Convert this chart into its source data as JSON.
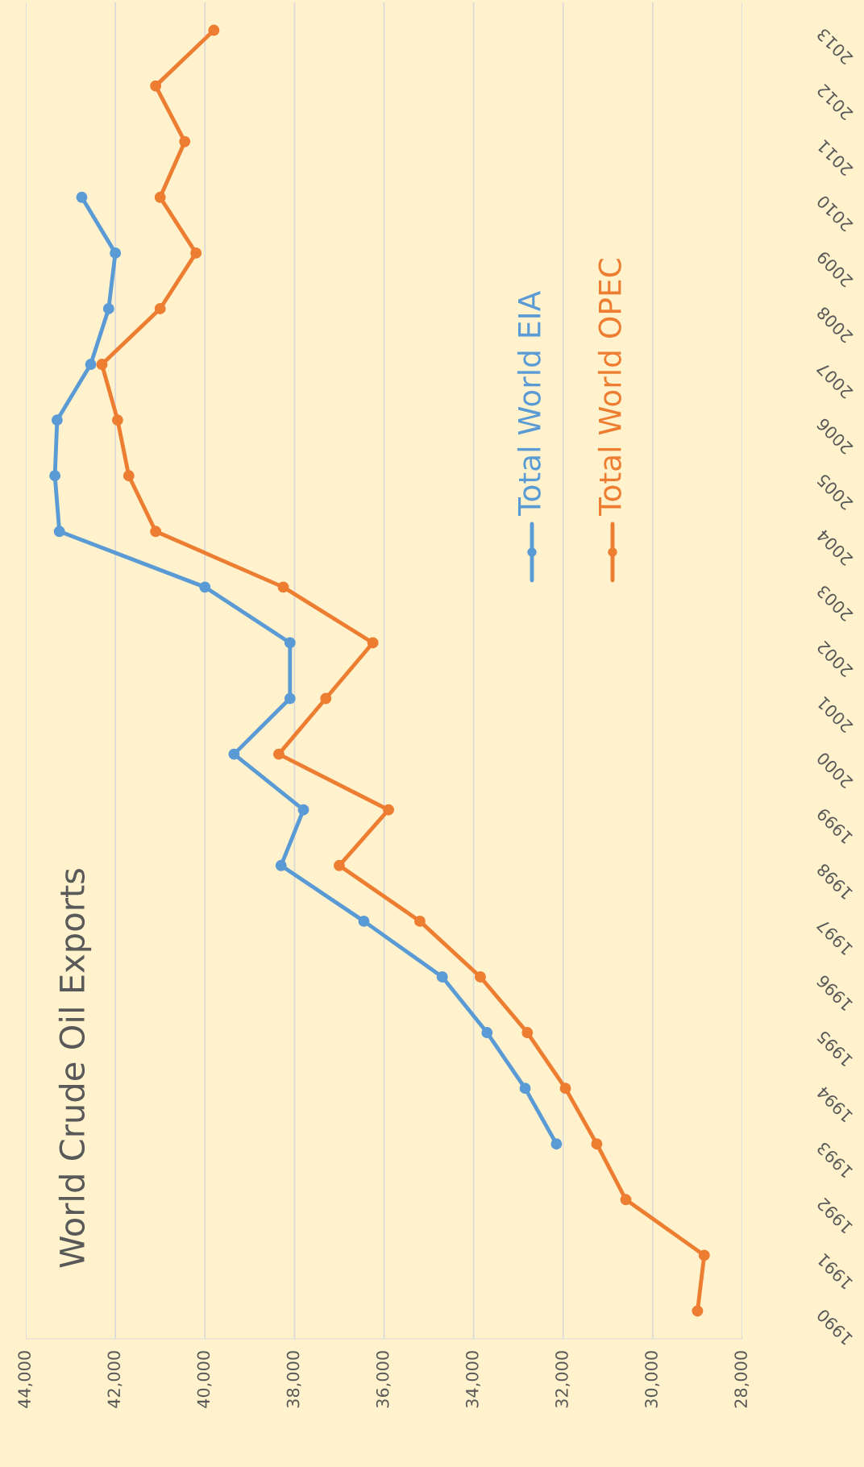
{
  "chart_data": {
    "type": "line",
    "orientation": "horizontal",
    "title": "World Crude Oil Exports",
    "categories": [
      "2013",
      "2012",
      "2011",
      "2010",
      "2009",
      "2008",
      "2007",
      "2006",
      "2005",
      "2004",
      "2003",
      "2002",
      "2001",
      "2000",
      "1999",
      "1998",
      "1997",
      "1996",
      "1995",
      "1994",
      "1993",
      "1992",
      "1991",
      "1990"
    ],
    "series": [
      {
        "name": "Total World EIA",
        "color": "#5b9bd5",
        "values": [
          null,
          null,
          null,
          42750,
          42000,
          42150,
          42550,
          43300,
          43350,
          43250,
          40000,
          38100,
          38100,
          39350,
          37800,
          38300,
          36450,
          34700,
          33700,
          32850,
          32150,
          null,
          null,
          null
        ]
      },
      {
        "name": "Total World OPEC",
        "color": "#ed7d31",
        "values": [
          39800,
          41100,
          40450,
          41000,
          40200,
          41000,
          42300,
          41950,
          41700,
          41100,
          38250,
          36250,
          37300,
          38350,
          35900,
          37000,
          35200,
          33850,
          32800,
          31950,
          31250,
          30600,
          28850,
          29000
        ]
      }
    ],
    "xlim": [
      44000,
      28000
    ],
    "xticks": [
      {
        "value": 44000,
        "label": "44,000"
      },
      {
        "value": 42000,
        "label": "42,000"
      },
      {
        "value": 40000,
        "label": "40,000"
      },
      {
        "value": 38000,
        "label": "38,000"
      },
      {
        "value": 36000,
        "label": "36,000"
      },
      {
        "value": 34000,
        "label": "34,000"
      },
      {
        "value": 32000,
        "label": "32,000"
      },
      {
        "value": 30000,
        "label": "30,000"
      },
      {
        "value": 28000,
        "label": "28,000"
      }
    ],
    "grid": "x",
    "legend": "right",
    "marker": "circle",
    "line_style": "solid"
  }
}
